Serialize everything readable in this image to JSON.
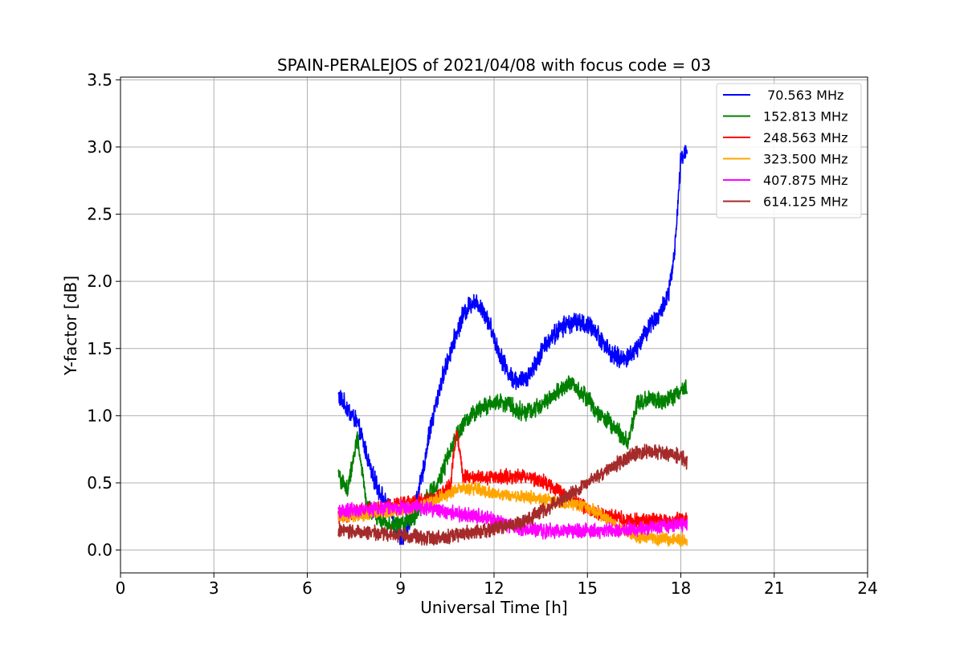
{
  "chart_data": {
    "type": "line",
    "title": "SPAIN-PERALEJOS of 2021/04/08 with focus code = 03",
    "xlabel": "Universal Time [h]",
    "ylabel": "Y-factor [dB]",
    "xlim": [
      0,
      24
    ],
    "ylim": [
      -0.17,
      3.52
    ],
    "xticks": [
      0,
      3,
      6,
      9,
      12,
      15,
      18,
      21,
      24
    ],
    "yticks": [
      0.0,
      0.5,
      1.0,
      1.5,
      2.0,
      2.5,
      3.0,
      3.5
    ],
    "xtick_labels": [
      "0",
      "3",
      "6",
      "9",
      "12",
      "15",
      "18",
      "21",
      "24"
    ],
    "ytick_labels": [
      "0.0",
      "0.5",
      "1.0",
      "1.5",
      "2.0",
      "2.5",
      "3.0",
      "3.5"
    ],
    "grid": true,
    "legend_position": "top-right",
    "series": [
      {
        "name": " 70.563 MHz",
        "color": "#0000ff",
        "noise": 0.06,
        "x": [
          7.0,
          7.3,
          7.6,
          7.9,
          8.1,
          8.3,
          8.5,
          8.7,
          8.9,
          9.1,
          9.3,
          9.5,
          9.7,
          9.9,
          10.1,
          10.3,
          10.5,
          10.7,
          11.0,
          11.3,
          11.6,
          11.9,
          12.2,
          12.5,
          12.8,
          13.1,
          13.4,
          13.7,
          14.0,
          14.3,
          14.6,
          14.9,
          15.2,
          15.5,
          15.8,
          16.1,
          16.4,
          16.7,
          17.0,
          17.3,
          17.6,
          17.8,
          18.0,
          18.2
        ],
        "y": [
          1.15,
          1.05,
          0.95,
          0.72,
          0.55,
          0.45,
          0.35,
          0.28,
          0.12,
          0.08,
          0.22,
          0.38,
          0.55,
          0.85,
          1.05,
          1.25,
          1.4,
          1.55,
          1.75,
          1.85,
          1.82,
          1.65,
          1.45,
          1.3,
          1.25,
          1.3,
          1.42,
          1.55,
          1.62,
          1.68,
          1.7,
          1.68,
          1.65,
          1.55,
          1.45,
          1.42,
          1.45,
          1.55,
          1.68,
          1.75,
          1.9,
          2.2,
          2.9,
          3.0
        ]
      },
      {
        "name": "152.813 MHz",
        "color": "#008000",
        "noise": 0.055,
        "x": [
          7.0,
          7.3,
          7.6,
          7.9,
          8.2,
          8.5,
          8.8,
          9.1,
          9.4,
          9.7,
          10.0,
          10.3,
          10.6,
          10.9,
          11.2,
          11.5,
          11.8,
          12.1,
          12.4,
          12.7,
          13.0,
          13.3,
          13.6,
          13.9,
          14.2,
          14.5,
          14.8,
          15.1,
          15.4,
          15.7,
          16.0,
          16.3,
          16.6,
          16.9,
          17.2,
          17.5,
          17.8,
          18.0,
          18.2
        ],
        "y": [
          0.55,
          0.45,
          0.85,
          0.35,
          0.25,
          0.2,
          0.18,
          0.2,
          0.25,
          0.32,
          0.45,
          0.55,
          0.75,
          0.9,
          0.98,
          1.05,
          1.08,
          1.1,
          1.1,
          1.05,
          1.02,
          1.05,
          1.1,
          1.15,
          1.2,
          1.25,
          1.18,
          1.1,
          1.0,
          0.95,
          0.88,
          0.8,
          1.1,
          1.12,
          1.12,
          1.1,
          1.15,
          1.2,
          1.2
        ]
      },
      {
        "name": "248.563 MHz",
        "color": "#ff0000",
        "noise": 0.045,
        "x": [
          7.0,
          7.5,
          8.0,
          8.5,
          9.0,
          9.5,
          10.0,
          10.3,
          10.6,
          10.8,
          11.0,
          11.5,
          12.0,
          12.5,
          13.0,
          13.5,
          14.0,
          14.5,
          15.0,
          15.5,
          16.0,
          16.5,
          17.0,
          17.5,
          18.0,
          18.2
        ],
        "y": [
          0.25,
          0.28,
          0.3,
          0.32,
          0.34,
          0.36,
          0.38,
          0.42,
          0.48,
          0.9,
          0.55,
          0.55,
          0.54,
          0.55,
          0.55,
          0.52,
          0.45,
          0.38,
          0.3,
          0.26,
          0.24,
          0.22,
          0.22,
          0.22,
          0.22,
          0.22
        ]
      },
      {
        "name": "323.500 MHz",
        "color": "#ffa500",
        "noise": 0.04,
        "x": [
          7.0,
          7.5,
          8.0,
          8.5,
          9.0,
          9.5,
          10.0,
          10.5,
          11.0,
          11.5,
          12.0,
          12.5,
          13.0,
          13.5,
          14.0,
          14.5,
          15.0,
          15.5,
          16.0,
          16.5,
          17.0,
          17.5,
          18.0,
          18.2
        ],
        "y": [
          0.25,
          0.26,
          0.27,
          0.28,
          0.3,
          0.32,
          0.36,
          0.42,
          0.46,
          0.45,
          0.42,
          0.4,
          0.4,
          0.38,
          0.36,
          0.34,
          0.32,
          0.25,
          0.16,
          0.1,
          0.08,
          0.08,
          0.08,
          0.08
        ]
      },
      {
        "name": "407.875 MHz",
        "color": "#ff00ff",
        "noise": 0.045,
        "x": [
          7.0,
          7.5,
          8.0,
          8.5,
          9.0,
          9.5,
          10.0,
          10.5,
          11.0,
          11.5,
          12.0,
          12.5,
          13.0,
          13.5,
          14.0,
          14.5,
          15.0,
          15.5,
          16.0,
          16.5,
          17.0,
          17.5,
          18.0,
          18.2
        ],
        "y": [
          0.28,
          0.3,
          0.3,
          0.31,
          0.32,
          0.32,
          0.3,
          0.28,
          0.26,
          0.25,
          0.22,
          0.18,
          0.15,
          0.14,
          0.14,
          0.14,
          0.14,
          0.14,
          0.15,
          0.16,
          0.17,
          0.18,
          0.19,
          0.19
        ]
      },
      {
        "name": "614.125 MHz",
        "color": "#a52a2a",
        "noise": 0.045,
        "x": [
          7.0,
          7.5,
          8.0,
          8.5,
          9.0,
          9.5,
          10.0,
          10.5,
          11.0,
          11.5,
          12.0,
          12.5,
          13.0,
          13.5,
          14.0,
          14.5,
          15.0,
          15.5,
          16.0,
          16.5,
          17.0,
          17.5,
          18.0,
          18.2
        ],
        "y": [
          0.14,
          0.14,
          0.13,
          0.12,
          0.11,
          0.1,
          0.09,
          0.1,
          0.12,
          0.14,
          0.16,
          0.18,
          0.22,
          0.28,
          0.35,
          0.42,
          0.5,
          0.58,
          0.65,
          0.72,
          0.74,
          0.72,
          0.7,
          0.65
        ]
      }
    ]
  }
}
